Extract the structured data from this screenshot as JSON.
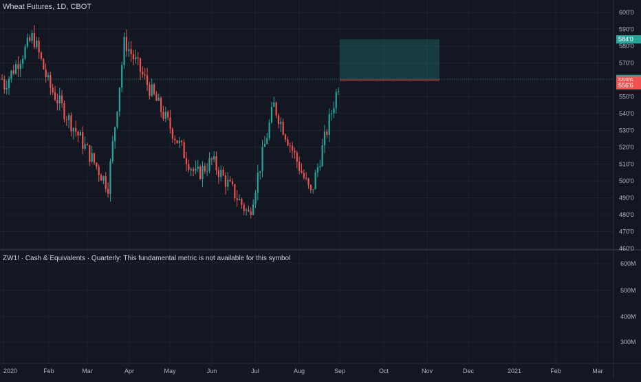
{
  "chart": {
    "title": "Wheat Futures, 1D, CBOT",
    "lower_pane_title": "ZW1! · Cash & Equivalents · Quarterly: This fundamental metric is not available for this symbol"
  },
  "chart_data": {
    "type": "candlestick",
    "price_axis": {
      "ticks": [
        "600'0",
        "590'0",
        "580'0",
        "570'0",
        "560'0",
        "550'0",
        "540'0",
        "530'0",
        "520'0",
        "510'0",
        "500'0",
        "490'0",
        "480'0",
        "470'0",
        "460'0"
      ],
      "ylim": [
        460,
        605
      ]
    },
    "lower_axis": {
      "ticks": [
        "600M",
        "500M",
        "400M",
        "300M"
      ]
    },
    "time_axis": {
      "labels": [
        "2020",
        "Feb",
        "Mar",
        "Apr",
        "May",
        "Jun",
        "Jul",
        "Aug",
        "Sep",
        "Oct",
        "Nov",
        "Dec",
        "2021",
        "Feb",
        "Mar"
      ]
    },
    "price_labels": [
      {
        "value": 584,
        "text": "584'0",
        "color": "#26a69a"
      },
      {
        "value": 560.5,
        "text": "560'4",
        "color": "#26a69a"
      },
      {
        "value": 557,
        "text": "03:22:35",
        "color": "#26a69a"
      },
      {
        "value": 559.75,
        "text": "559'6",
        "color": "#ef5350"
      },
      {
        "value": 556.75,
        "text": "556'6",
        "color": "#ef5350"
      }
    ],
    "position": {
      "entry": 560.5,
      "target": 584,
      "stop": 559.75,
      "from_month": "Sep",
      "to_month": "Nov"
    },
    "colors": {
      "up": "#26a69a",
      "down": "#ef5350",
      "background": "#131722",
      "grid": "#1e222d"
    },
    "key_points": [
      {
        "month": "2020",
        "price": 556
      },
      {
        "month": "Jan-mid",
        "price": 586
      },
      {
        "month": "Feb",
        "price": 557
      },
      {
        "month": "Mar",
        "price": 497
      },
      {
        "month": "Apr",
        "price": 583
      },
      {
        "month": "May",
        "price": 503
      },
      {
        "month": "Jun",
        "price": 512
      },
      {
        "month": "Jun-end",
        "price": 480
      },
      {
        "month": "Jul",
        "price": 545
      },
      {
        "month": "Aug",
        "price": 492
      },
      {
        "month": "Sep",
        "price": 560.5
      }
    ]
  }
}
